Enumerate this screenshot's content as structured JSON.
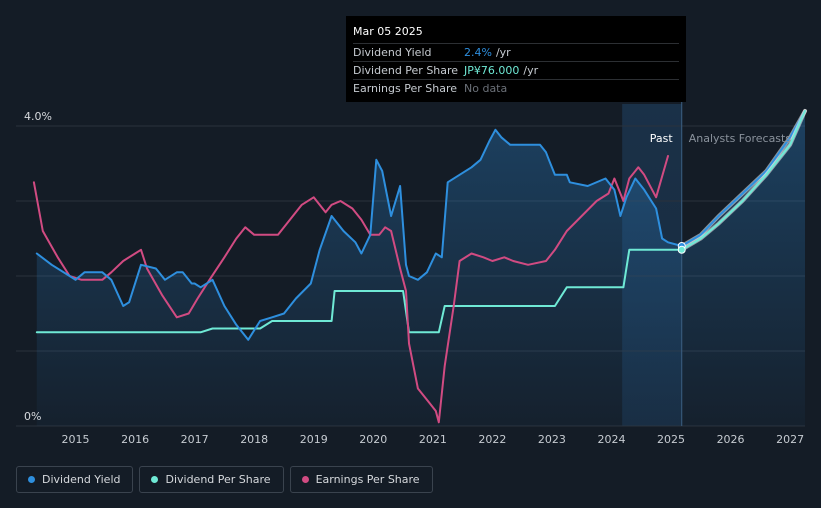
{
  "colors": {
    "background": "#141c26",
    "dividend_yield": "#2e8fde",
    "dividend_per_share": "#6fe9d5",
    "earnings_per_share": "#d14b82",
    "forecast_band": "#1b3550",
    "grid": "#2a323c"
  },
  "tooltip": {
    "date": "Mar 05 2025",
    "rows": [
      {
        "label": "Dividend Yield",
        "value": "2.4%",
        "unit": "/yr",
        "color": "#2e8fde"
      },
      {
        "label": "Dividend Per Share",
        "value": "JP¥76.000",
        "unit": "/yr",
        "color": "#6fe9d5"
      },
      {
        "label": "Earnings Per Share",
        "value": "No data",
        "unit": "",
        "color": "#6b7078"
      }
    ]
  },
  "regions": {
    "past_label": "Past",
    "forecast_label": "Analysts Forecasts"
  },
  "legend": {
    "items": [
      {
        "label": "Dividend Yield",
        "color": "#2e8fde"
      },
      {
        "label": "Dividend Per Share",
        "color": "#6fe9d5"
      },
      {
        "label": "Earnings Per Share",
        "color": "#d14b82"
      }
    ]
  },
  "chart_data": {
    "type": "line",
    "xlim": [
      2014.0,
      2027.25
    ],
    "ylim": [
      0,
      4.0
    ],
    "y_tick_labels": [
      {
        "value": 0,
        "label": "0%"
      },
      {
        "value": 4.0,
        "label": "4.0%"
      }
    ],
    "gridlines_y": [
      1.0,
      2.0,
      3.0,
      4.0
    ],
    "x_ticks": [
      "2015",
      "2016",
      "2017",
      "2018",
      "2019",
      "2020",
      "2021",
      "2022",
      "2023",
      "2024",
      "2025",
      "2026",
      "2027"
    ],
    "x_tick_values": [
      2015,
      2016,
      2017,
      2018,
      2019,
      2020,
      2021,
      2022,
      2023,
      2024,
      2025,
      2026,
      2027
    ],
    "today": 2025.18,
    "forecast_band_start": 2024.18,
    "series": [
      {
        "name": "Dividend Yield",
        "key": "dividend_yield",
        "x": [
          2014.35,
          2014.6,
          2014.9,
          2015.0,
          2015.15,
          2015.45,
          2015.6,
          2015.8,
          2015.9,
          2016.1,
          2016.35,
          2016.5,
          2016.7,
          2016.8,
          2016.95,
          2017.0,
          2017.1,
          2017.3,
          2017.5,
          2017.7,
          2017.9,
          2018.1,
          2018.3,
          2018.5,
          2018.7,
          2018.95,
          2019.1,
          2019.3,
          2019.5,
          2019.7,
          2019.8,
          2019.95,
          2020.05,
          2020.15,
          2020.3,
          2020.45,
          2020.55,
          2020.6,
          2020.75,
          2020.9,
          2021.05,
          2021.15,
          2021.25,
          2021.45,
          2021.65,
          2021.8,
          2021.95,
          2022.05,
          2022.15,
          2022.3,
          2022.5,
          2022.8,
          2022.9,
          2022.95,
          2023.05,
          2023.25,
          2023.3,
          2023.6,
          2023.9,
          2024.05,
          2024.15,
          2024.25,
          2024.4,
          2024.55,
          2024.75,
          2024.85,
          2024.95,
          2025.18,
          2025.5,
          2025.8,
          2026.2,
          2026.6,
          2027.0,
          2027.25
        ],
        "y": [
          2.3,
          2.15,
          2.0,
          1.95,
          2.05,
          2.05,
          1.95,
          1.6,
          1.65,
          2.15,
          2.1,
          1.95,
          2.05,
          2.05,
          1.9,
          1.9,
          1.85,
          1.95,
          1.6,
          1.35,
          1.15,
          1.4,
          1.45,
          1.5,
          1.7,
          1.9,
          2.35,
          2.8,
          2.6,
          2.45,
          2.3,
          2.55,
          3.55,
          3.4,
          2.8,
          3.2,
          2.15,
          2.0,
          1.95,
          2.05,
          2.3,
          2.25,
          3.25,
          3.35,
          3.45,
          3.55,
          3.8,
          3.95,
          3.85,
          3.75,
          3.75,
          3.75,
          3.65,
          3.55,
          3.35,
          3.35,
          3.25,
          3.2,
          3.3,
          3.15,
          2.8,
          3.05,
          3.3,
          3.15,
          2.9,
          2.5,
          2.45,
          2.4,
          2.55,
          2.8,
          3.1,
          3.4,
          3.85,
          4.2
        ]
      },
      {
        "name": "Dividend Per Share",
        "key": "dividend_per_share",
        "x": [
          2014.35,
          2017.1,
          2017.3,
          2018.1,
          2018.3,
          2019.3,
          2019.35,
          2020.5,
          2020.6,
          2021.1,
          2021.2,
          2023.05,
          2023.25,
          2024.2,
          2024.3,
          2025.18,
          2025.5,
          2025.8,
          2026.2,
          2026.6,
          2027.0,
          2027.25
        ],
        "y": [
          1.25,
          1.25,
          1.3,
          1.3,
          1.4,
          1.4,
          1.8,
          1.8,
          1.25,
          1.25,
          1.6,
          1.6,
          1.85,
          1.85,
          2.35,
          2.35,
          2.5,
          2.7,
          3.0,
          3.35,
          3.75,
          4.2
        ]
      },
      {
        "name": "Earnings Per Share",
        "key": "earnings_per_share",
        "x": [
          2014.3,
          2014.45,
          2014.7,
          2014.9,
          2015.1,
          2015.45,
          2015.6,
          2015.8,
          2016.0,
          2016.1,
          2016.2,
          2016.45,
          2016.7,
          2016.9,
          2017.05,
          2017.25,
          2017.5,
          2017.7,
          2017.85,
          2018.0,
          2018.2,
          2018.4,
          2018.6,
          2018.8,
          2019.0,
          2019.2,
          2019.3,
          2019.45,
          2019.65,
          2019.8,
          2019.95,
          2020.1,
          2020.2,
          2020.3,
          2020.45,
          2020.55,
          2020.6,
          2020.75,
          2020.95,
          2021.05,
          2021.1,
          2021.2,
          2021.35,
          2021.45,
          2021.65,
          2021.85,
          2022.0,
          2022.2,
          2022.35,
          2022.6,
          2022.9,
          2023.05,
          2023.25,
          2023.5,
          2023.75,
          2023.95,
          2024.05,
          2024.2,
          2024.3,
          2024.45,
          2024.55,
          2024.75,
          2024.95
        ],
        "y": [
          3.25,
          2.6,
          2.25,
          2.0,
          1.95,
          1.95,
          2.05,
          2.2,
          2.3,
          2.35,
          2.1,
          1.75,
          1.45,
          1.5,
          1.7,
          1.95,
          2.25,
          2.5,
          2.65,
          2.55,
          2.55,
          2.55,
          2.75,
          2.95,
          3.05,
          2.85,
          2.95,
          3.0,
          2.9,
          2.75,
          2.55,
          2.55,
          2.65,
          2.6,
          2.1,
          1.8,
          1.1,
          0.5,
          0.3,
          0.2,
          0.05,
          0.8,
          1.6,
          2.2,
          2.3,
          2.25,
          2.2,
          2.25,
          2.2,
          2.15,
          2.2,
          2.35,
          2.6,
          2.8,
          3.0,
          3.1,
          3.3,
          3.0,
          3.3,
          3.45,
          3.35,
          3.05,
          3.6
        ]
      }
    ]
  }
}
